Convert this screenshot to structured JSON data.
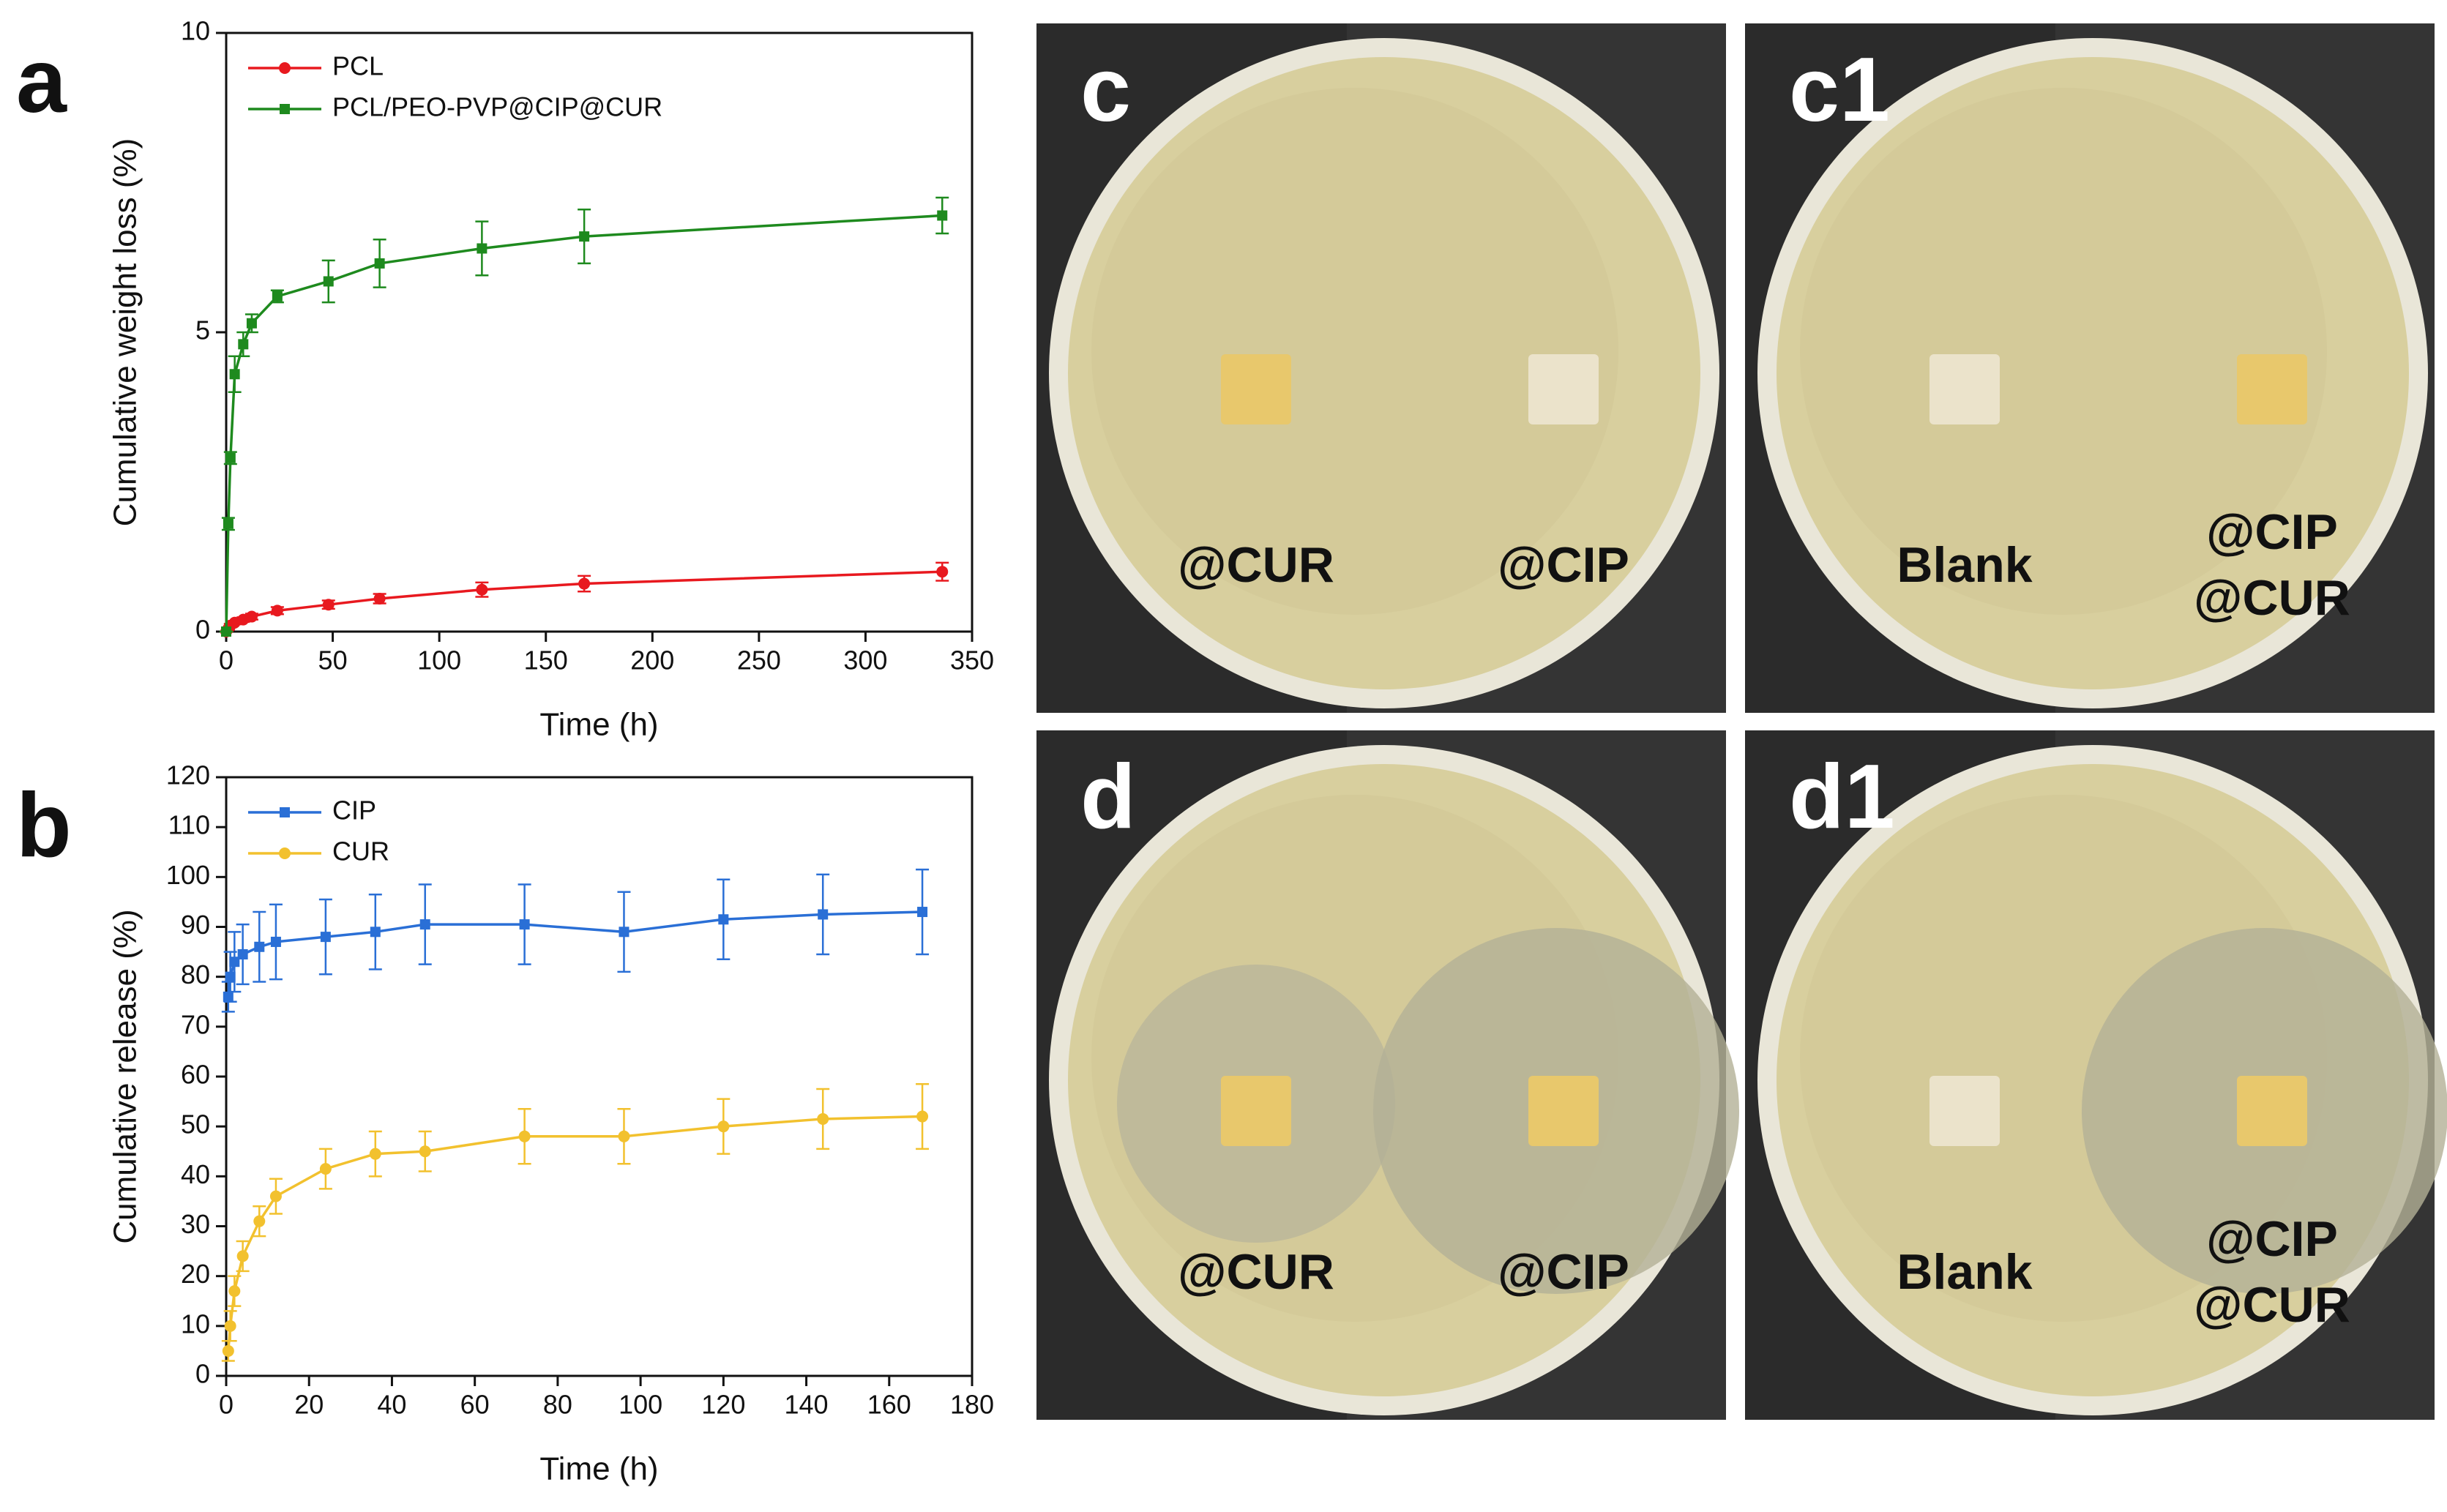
{
  "chart_data": [
    {
      "type": "line",
      "panel_label": "a",
      "xlabel": "Time (h)",
      "ylabel": "Cumulative weight loss (%)",
      "x": [
        0,
        1,
        2,
        4,
        8,
        12,
        24,
        48,
        72,
        120,
        168,
        336
      ],
      "series": [
        {
          "name": "PCL",
          "color": "#e8191f",
          "marker": "circle",
          "values": [
            0,
            0.05,
            0.1,
            0.15,
            0.2,
            0.25,
            0.35,
            0.45,
            0.55,
            0.7,
            0.8,
            1.0
          ],
          "errors": [
            0,
            0.02,
            0.03,
            0.03,
            0.04,
            0.05,
            0.06,
            0.07,
            0.08,
            0.12,
            0.13,
            0.15
          ]
        },
        {
          "name": "PCL/PEO-PVP@CIP@CUR",
          "color": "#1e8a1e",
          "marker": "square",
          "values": [
            0,
            1.8,
            2.9,
            4.3,
            4.8,
            5.15,
            5.6,
            5.85,
            6.15,
            6.4,
            6.6,
            6.95
          ],
          "errors": [
            0,
            0.1,
            0.1,
            0.3,
            0.2,
            0.15,
            0.1,
            0.35,
            0.4,
            0.45,
            0.45,
            0.3
          ]
        }
      ],
      "xlim": [
        0,
        350
      ],
      "xticks": [
        0,
        50,
        100,
        150,
        200,
        250,
        300,
        350
      ],
      "ylim": [
        0,
        10
      ],
      "yticks": [
        0,
        5,
        10
      ],
      "legend": "upper left"
    },
    {
      "type": "line",
      "panel_label": "b",
      "xlabel": "Time (h)",
      "ylabel": "Cumulative release (%)",
      "x": [
        0.5,
        1,
        2,
        4,
        8,
        12,
        24,
        36,
        48,
        72,
        96,
        120,
        144,
        168
      ],
      "series": [
        {
          "name": "CIP",
          "color": "#2a6fd6",
          "marker": "square",
          "values": [
            76,
            80,
            83,
            84.5,
            86,
            87,
            88,
            89,
            90.5,
            90.5,
            89,
            91.5,
            92.5,
            93
          ],
          "errors": [
            3,
            5,
            6,
            6,
            7,
            7.5,
            7.5,
            7.5,
            8,
            8,
            8,
            8,
            8,
            8.5
          ]
        },
        {
          "name": "CUR",
          "color": "#f2c12e",
          "marker": "circle",
          "values": [
            5,
            10,
            17,
            24,
            31,
            36,
            41.5,
            44.5,
            45,
            48,
            48,
            50,
            51.5,
            52
          ],
          "errors": [
            2,
            3,
            3,
            3,
            3,
            3.5,
            4,
            4.5,
            4,
            5.5,
            5.5,
            5.5,
            6,
            6.5
          ]
        }
      ],
      "xlim": [
        0,
        180
      ],
      "xticks": [
        0,
        20,
        40,
        60,
        80,
        100,
        120,
        140,
        160,
        180
      ],
      "ylim": [
        0,
        120
      ],
      "yticks": [
        0,
        10,
        20,
        30,
        40,
        50,
        60,
        70,
        80,
        90,
        100,
        110,
        120
      ],
      "legend": "upper left"
    }
  ],
  "panels": [
    {
      "label": "c",
      "labels": [
        {
          "lines": [
            "@CUR"
          ]
        },
        {
          "lines": [
            "@CIP"
          ]
        }
      ]
    },
    {
      "label": "c1",
      "labels": [
        {
          "lines": [
            "Blank"
          ]
        },
        {
          "lines": [
            "@CIP",
            "@CUR"
          ]
        }
      ]
    },
    {
      "label": "d",
      "labels": [
        {
          "lines": [
            "@CUR"
          ]
        },
        {
          "lines": [
            "@CIP"
          ]
        }
      ]
    },
    {
      "label": "d1",
      "labels": [
        {
          "lines": [
            "Blank"
          ]
        },
        {
          "lines": [
            "@CIP",
            "@CUR"
          ]
        }
      ]
    }
  ]
}
